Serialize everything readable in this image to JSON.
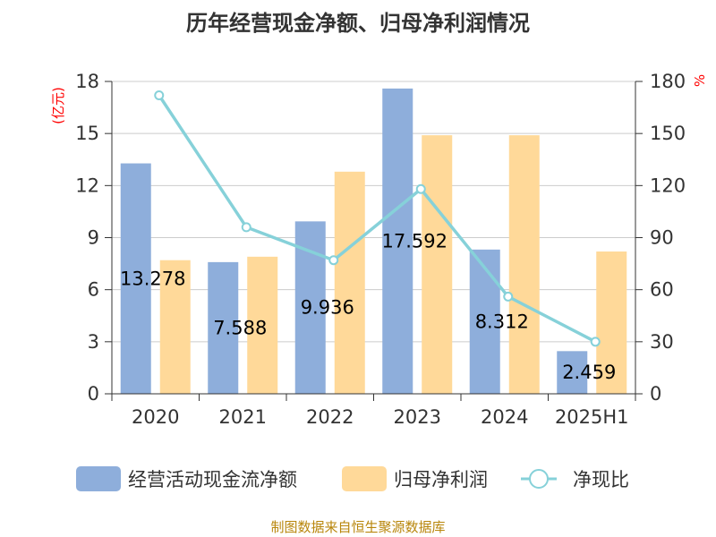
{
  "chart_data": {
    "type": "bar",
    "title": "历年经营现金净额、归母净利润情况",
    "categories": [
      "2020",
      "2021",
      "2022",
      "2023",
      "2024",
      "2025H1"
    ],
    "y_left": {
      "label": "(亿元)",
      "ylim": [
        0,
        18
      ],
      "ticks": [
        0,
        3,
        6,
        9,
        12,
        15,
        18
      ]
    },
    "y_right": {
      "label": "%",
      "ylim": [
        0,
        180
      ],
      "ticks": [
        0,
        30,
        60,
        90,
        120,
        150,
        180
      ]
    },
    "series": [
      {
        "name": "经营活动现金流净额",
        "type": "bar",
        "axis": "left",
        "color": "#8eaedb",
        "values": [
          13.278,
          7.588,
          9.936,
          17.592,
          8.312,
          2.459
        ],
        "labels": [
          "13.278",
          "7.588",
          "9.936",
          "17.592",
          "8.312",
          "2.459"
        ]
      },
      {
        "name": "归母净利润",
        "type": "bar",
        "axis": "left",
        "color": "#ffd999",
        "values": [
          7.7,
          7.9,
          12.8,
          14.9,
          14.9,
          8.2
        ]
      },
      {
        "name": "净现比",
        "type": "line",
        "axis": "right",
        "color": "#86d1d9",
        "values": [
          172,
          96,
          77,
          118,
          56,
          30
        ]
      }
    ],
    "grid": true,
    "legend": "bottom"
  },
  "source": "制图数据来自恒生聚源数据库"
}
